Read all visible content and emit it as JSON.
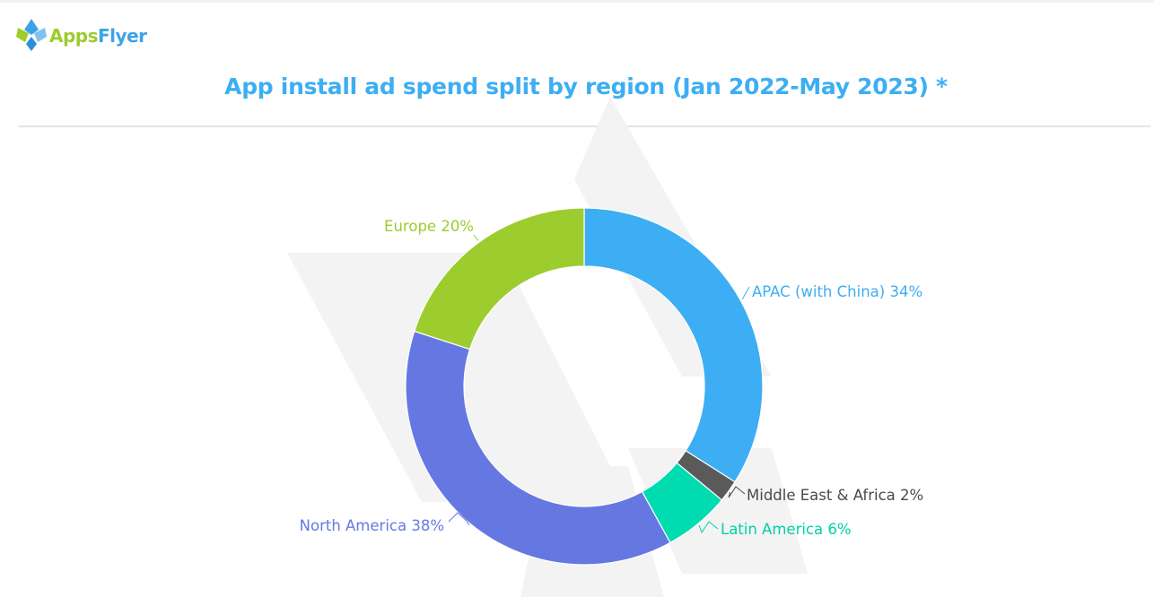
{
  "brand": {
    "logo_word_1": "Apps",
    "logo_word_2": "Flyer",
    "colors": {
      "title": "#3daef3",
      "brand_green": "#9ccc2e",
      "brand_blue": "#3da3e8"
    }
  },
  "chart_data": {
    "type": "pie",
    "variant": "donut",
    "title": "App install ad spend split by region (Jan 2022-May 2023) *",
    "slices": [
      {
        "name": "APAC (with China)",
        "value": 34,
        "label": "APAC (with China) 34%",
        "color": "#3daef3"
      },
      {
        "name": "Middle East & Africa",
        "value": 2,
        "label": "Middle East & Africa 2%",
        "color": "#5a5a5a"
      },
      {
        "name": "Latin America",
        "value": 6,
        "label": "Latin America 6%",
        "color": "#00dbb0"
      },
      {
        "name": "North America",
        "value": 38,
        "label": "North America 38%",
        "color": "#6578e2"
      },
      {
        "name": "Europe",
        "value": 20,
        "label": "Europe 20%",
        "color": "#9ccc2e"
      }
    ],
    "start_angle_deg": 0,
    "direction": "clockwise",
    "legend": "none",
    "label_colors": {
      "APAC (with China)": "#3daef3",
      "Middle East & Africa": "#4a4a4a",
      "Latin America": "#00d1a8",
      "North America": "#6578e2",
      "Europe": "#9ccc2e"
    }
  }
}
